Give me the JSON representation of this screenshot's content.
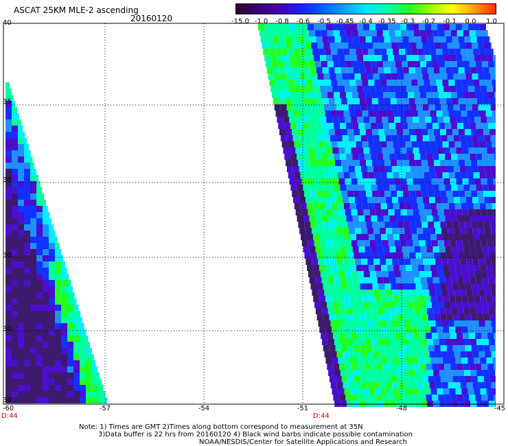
{
  "header": {
    "title": "ASCAT 25KM MLE-2 ascending",
    "date": "20160120"
  },
  "colorbar": {
    "labels": [
      "-15.0",
      "-1.0",
      "-0.8",
      "-0.6",
      "-0.5",
      "-0.45",
      "-0.4",
      "-0.35",
      "-0.3",
      "-0.2",
      "-0.1",
      "0.0",
      "1.0"
    ],
    "colors": [
      "#2a0030",
      "#3a0070",
      "#4a00b0",
      "#1a20ff",
      "#0060ff",
      "#00a0ff",
      "#00e8ff",
      "#00ffb0",
      "#20ff20",
      "#a0ff00",
      "#ffff00",
      "#ffa000",
      "#ff3000"
    ]
  },
  "map": {
    "lon_labels": [
      "-60",
      "-57",
      "-54",
      "-51",
      "-48",
      "-45"
    ],
    "lat_labels": [
      "40",
      "35",
      "30",
      "30",
      "30",
      "30"
    ],
    "time_labels": [
      "D:44",
      "D:44"
    ],
    "colors": {
      "dark_purple": "#3c1a6e",
      "purple": "#4b0ecf",
      "blue": "#1430ff",
      "light_blue": "#1e90ff",
      "cyan": "#00f0ff",
      "aqua_green": "#00ffa0",
      "green": "#22ff22"
    }
  },
  "notes": {
    "line1": "Note: 1) Times are GMT 2)Times along bottom correspond to measurement at 35N",
    "line2": "3)Data buffer is 22 hrs from 20160120 4) Black wind barbs indicate possible contamination",
    "line3": "NOAA/NESDIS/Center for Satellite Applications and Research"
  }
}
